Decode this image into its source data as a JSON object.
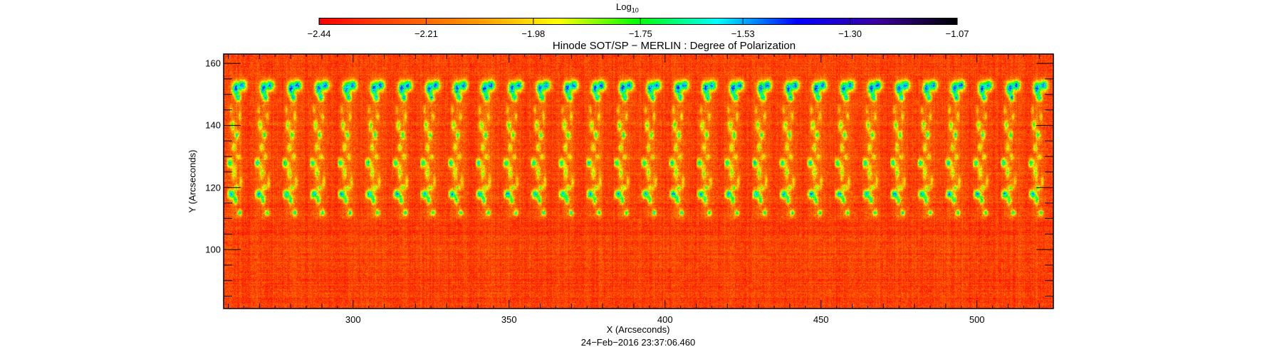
{
  "chart_data": {
    "type": "heatmap",
    "title": "Hinode SOT/SP − MERLIN : Degree of Polarization",
    "xlabel": "X (Arcseconds)",
    "ylabel": "Y (Arcseconds)",
    "timestamp": "24−Feb−2016 23:37:06.460",
    "xlim": [
      258.5,
      524.5
    ],
    "ylim": [
      81,
      163
    ],
    "xticks": [
      300,
      350,
      400,
      450,
      500
    ],
    "xtick_labels": [
      "300",
      "350",
      "400",
      "450",
      "500"
    ],
    "yticks": [
      100,
      120,
      140,
      160
    ],
    "ytick_labels": [
      "100",
      "120",
      "140",
      "160"
    ],
    "colorbar": {
      "title": "Log",
      "title_sub": "10",
      "range": [
        -2.44,
        -1.07
      ],
      "ticks": [
        -2.44,
        -2.21,
        -1.98,
        -1.75,
        -1.53,
        -1.3,
        -1.07
      ],
      "tick_labels": [
        "−2.44",
        "−2.21",
        "−1.98",
        "−1.75",
        "−1.53",
        "−1.30",
        "−1.07"
      ],
      "colormap": [
        "#ff0000",
        "#ff5000",
        "#ff9a00",
        "#ffff00",
        "#00ff00",
        "#00ffff",
        "#0000ff",
        "#3c00a0",
        "#000000"
      ]
    },
    "background_level": -2.3,
    "feature_peak_level": -1.25
  }
}
